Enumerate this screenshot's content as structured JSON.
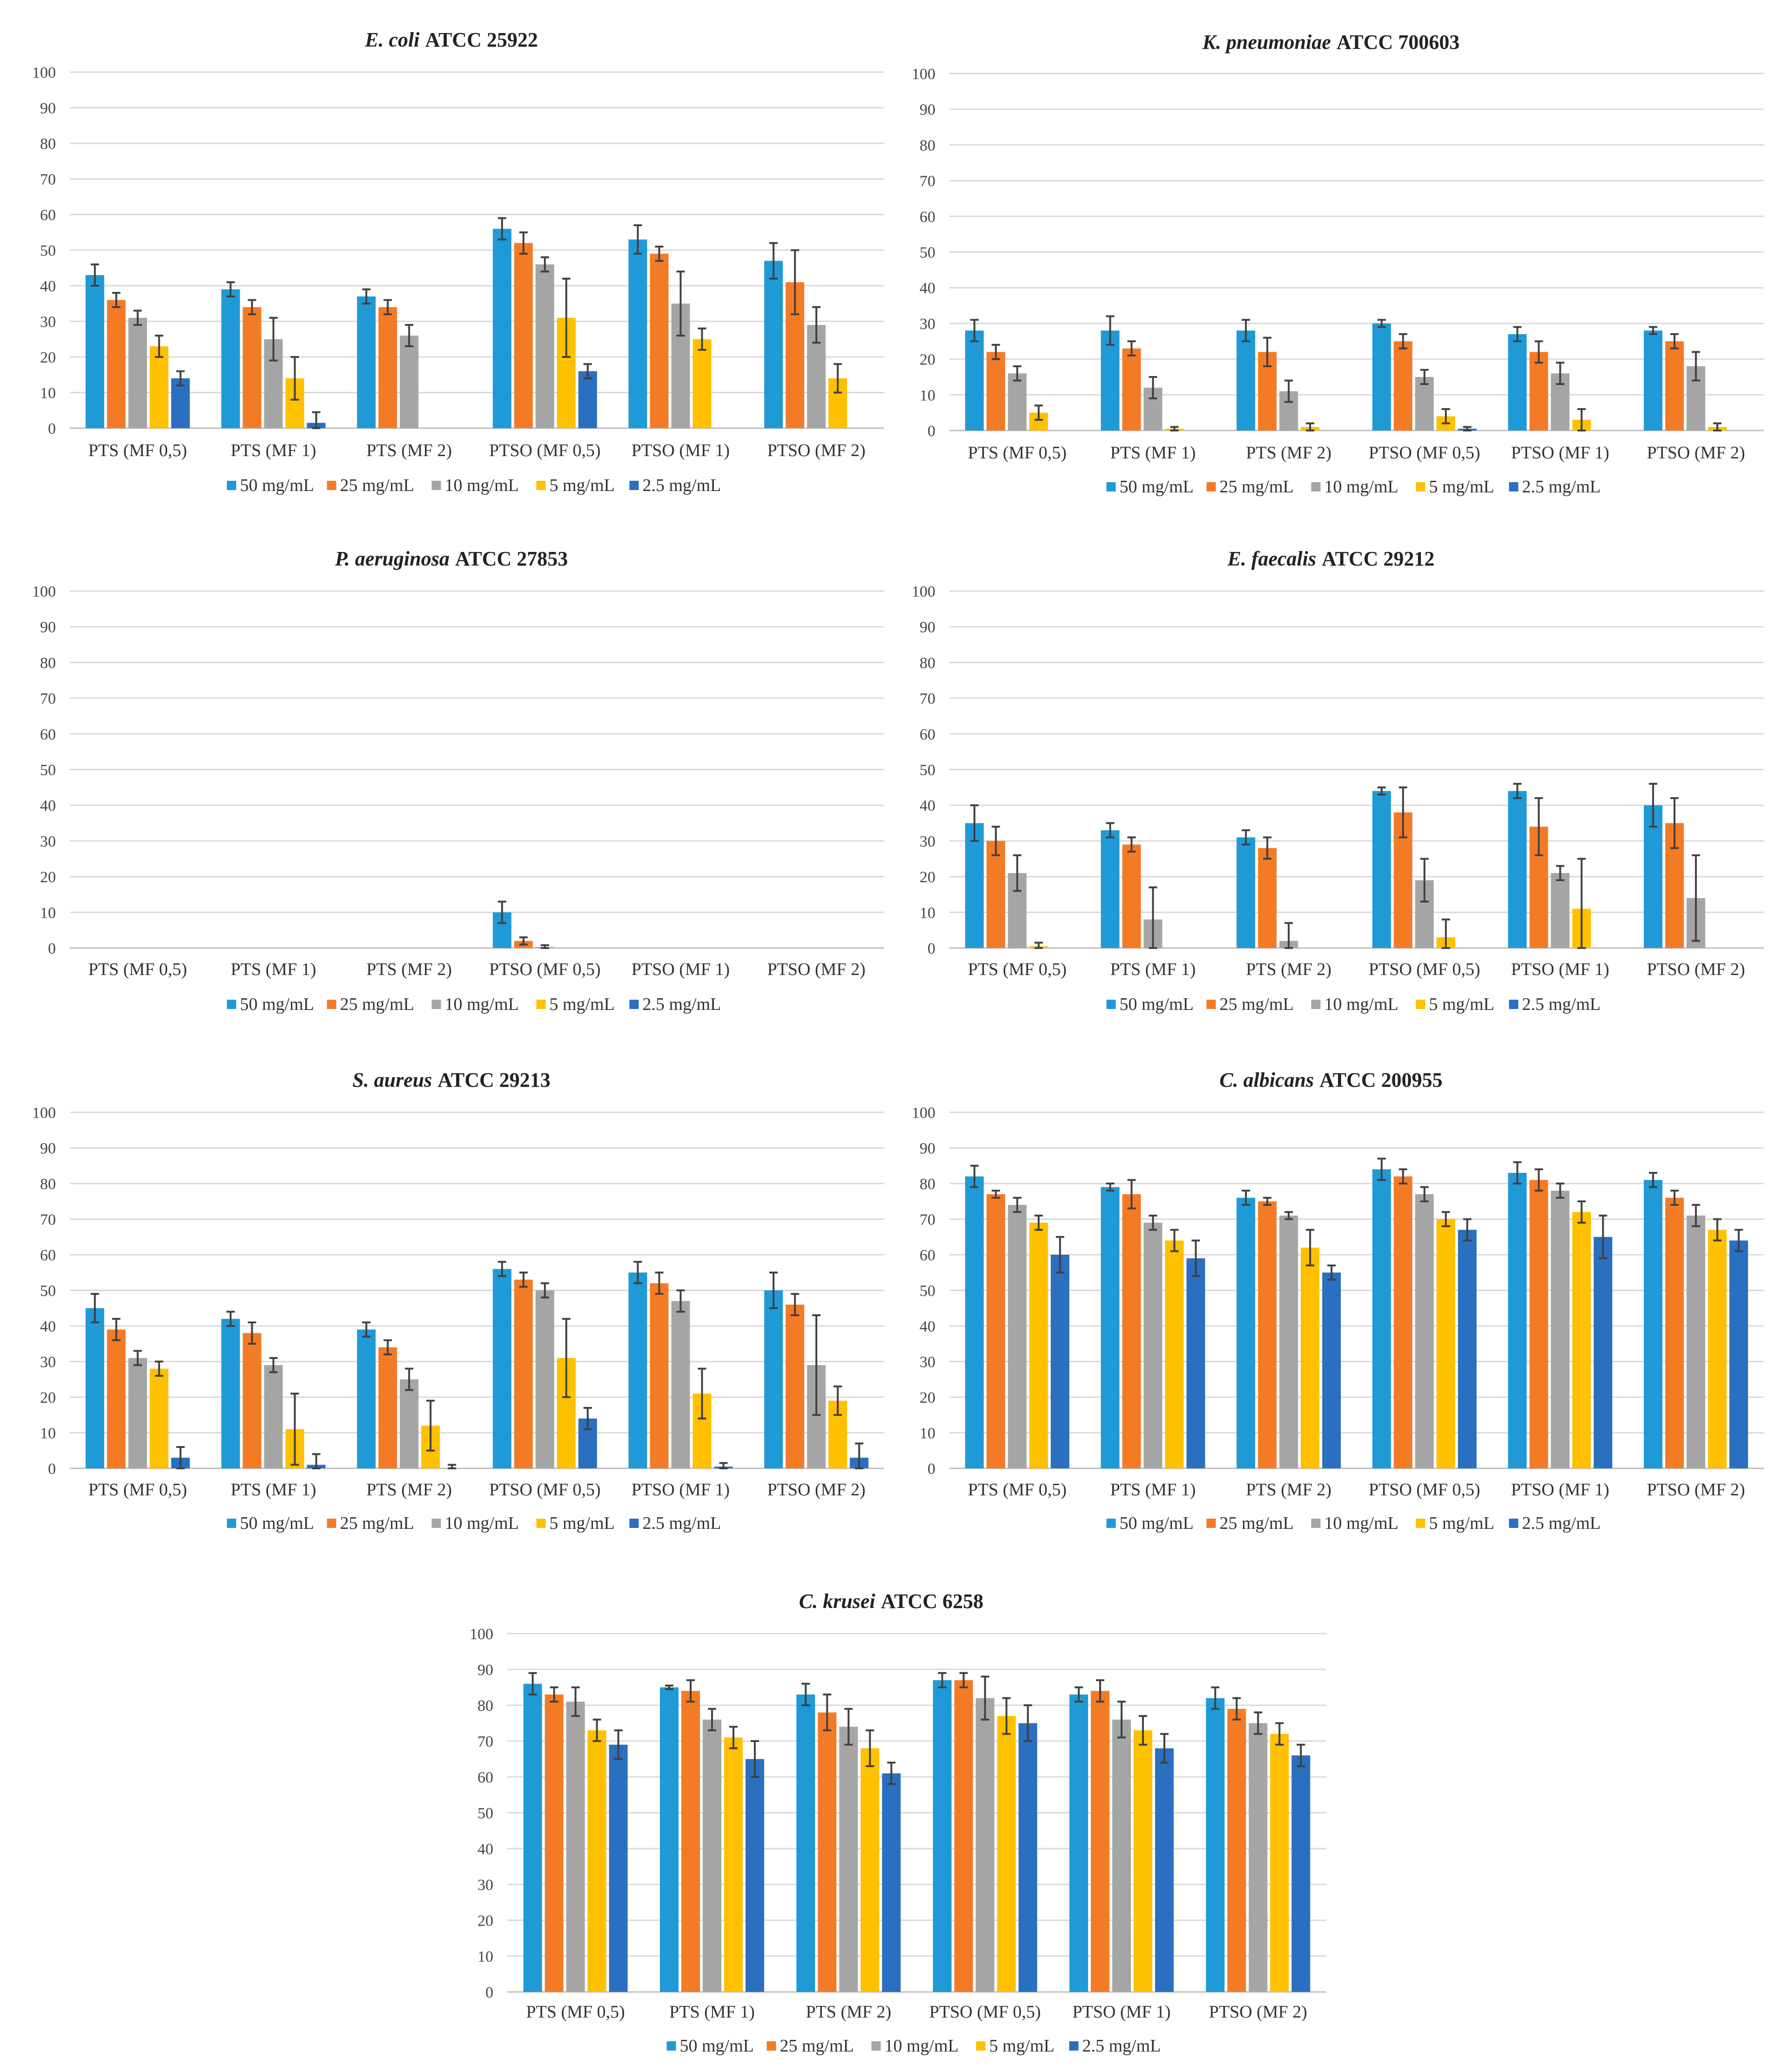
{
  "figure": "Antimicrobial activity panels",
  "colors": {
    "50 mg/mL": "#1f9ad6",
    "25 mg/mL": "#f47b26",
    "10 mg/mL": "#a5a5a5",
    "5 mg/mL": "#ffc000",
    "2.5 mg/mL": "#2a6fc0"
  },
  "chart_data": [
    {
      "type": "bar",
      "title_species": "E. coli",
      "title_strain": "ATCC 25922",
      "categories": [
        "PTS (MF 0,5)",
        "PTS (MF 1)",
        "PTS (MF 2)",
        "PTSO (MF 0,5)",
        "PTSO (MF 1)",
        "PTSO (MF 2)"
      ],
      "ylim": [
        0,
        100
      ],
      "yticks": [
        "0",
        "10",
        "20",
        "30",
        "40",
        "50",
        "60",
        "70",
        "80",
        "90",
        "100"
      ],
      "legend_position": "bottom",
      "series": [
        {
          "name": "50 mg/mL",
          "values": [
            43,
            39,
            37,
            56,
            53,
            47
          ],
          "errors": [
            3,
            2,
            2,
            3,
            4,
            5
          ]
        },
        {
          "name": "25 mg/mL",
          "values": [
            36,
            34,
            34,
            52,
            49,
            41
          ],
          "errors": [
            2,
            2,
            2,
            3,
            2,
            9
          ]
        },
        {
          "name": "10 mg/mL",
          "values": [
            31,
            25,
            26,
            46,
            35,
            29
          ],
          "errors": [
            2,
            6,
            3,
            2,
            9,
            5
          ]
        },
        {
          "name": "5 mg/mL",
          "values": [
            23,
            14,
            0,
            31,
            25,
            14
          ],
          "errors": [
            3,
            6,
            0,
            11,
            3,
            4
          ]
        },
        {
          "name": "2.5 mg/mL",
          "values": [
            14,
            1.5,
            0,
            16,
            0,
            0
          ],
          "errors": [
            2,
            3,
            0,
            2,
            0,
            0
          ]
        }
      ]
    },
    {
      "type": "bar",
      "title_species": "K. pneumoniae",
      "title_strain": "ATCC 700603",
      "categories": [
        "PTS (MF 0,5)",
        "PTS (MF 1)",
        "PTS (MF 2)",
        "PTSO (MF 0,5)",
        "PTSO (MF 1)",
        "PTSO (MF 2)"
      ],
      "ylim": [
        0,
        100
      ],
      "yticks": [
        "0",
        "10",
        "20",
        "30",
        "40",
        "50",
        "60",
        "70",
        "80",
        "90",
        "100"
      ],
      "legend_position": "bottom",
      "series": [
        {
          "name": "50 mg/mL",
          "values": [
            28,
            28,
            28,
            30,
            27,
            28
          ],
          "errors": [
            3,
            4,
            3,
            1,
            2,
            1
          ]
        },
        {
          "name": "25 mg/mL",
          "values": [
            22,
            23,
            22,
            25,
            22,
            25
          ],
          "errors": [
            2,
            2,
            4,
            2,
            3,
            2
          ]
        },
        {
          "name": "10 mg/mL",
          "values": [
            16,
            12,
            11,
            15,
            16,
            18
          ],
          "errors": [
            2,
            3,
            3,
            2,
            3,
            4
          ]
        },
        {
          "name": "5 mg/mL",
          "values": [
            5,
            0.5,
            1,
            4,
            3,
            1
          ],
          "errors": [
            2,
            0.5,
            1,
            2,
            3,
            1
          ]
        },
        {
          "name": "2.5 mg/mL",
          "values": [
            0,
            0,
            0,
            0.5,
            0,
            0
          ],
          "errors": [
            0,
            0,
            0,
            0.5,
            0,
            0
          ]
        }
      ]
    },
    {
      "type": "bar",
      "title_species": "P. aeruginosa",
      "title_strain": "ATCC 27853",
      "categories": [
        "PTS (MF 0,5)",
        "PTS (MF 1)",
        "PTS (MF 2)",
        "PTSO (MF 0,5)",
        "PTSO (MF 1)",
        "PTSO (MF 2)"
      ],
      "ylim": [
        0,
        100
      ],
      "yticks": [
        "0",
        "10",
        "20",
        "30",
        "40",
        "50",
        "60",
        "70",
        "80",
        "90",
        "100"
      ],
      "legend_position": "bottom",
      "series": [
        {
          "name": "50 mg/mL",
          "values": [
            0,
            0,
            0,
            10,
            0,
            0
          ],
          "errors": [
            0,
            0,
            0,
            3,
            0,
            0
          ]
        },
        {
          "name": "25 mg/mL",
          "values": [
            0,
            0,
            0,
            2,
            0,
            0
          ],
          "errors": [
            0,
            0,
            0,
            1,
            0,
            0
          ]
        },
        {
          "name": "10 mg/mL",
          "values": [
            0,
            0,
            0,
            0.3,
            0,
            0
          ],
          "errors": [
            0,
            0,
            0,
            0.5,
            0,
            0
          ]
        },
        {
          "name": "5 mg/mL",
          "values": [
            0,
            0,
            0,
            0,
            0,
            0
          ],
          "errors": [
            0,
            0,
            0,
            0,
            0,
            0
          ]
        },
        {
          "name": "2.5 mg/mL",
          "values": [
            0,
            0,
            0,
            0,
            0,
            0
          ],
          "errors": [
            0,
            0,
            0,
            0,
            0,
            0
          ]
        }
      ]
    },
    {
      "type": "bar",
      "title_species": "E. faecalis",
      "title_strain": "ATCC 29212",
      "categories": [
        "PTS (MF 0,5)",
        "PTS (MF 1)",
        "PTS (MF 2)",
        "PTSO (MF 0,5)",
        "PTSO (MF 1)",
        "PTSO (MF 2)"
      ],
      "ylim": [
        0,
        100
      ],
      "yticks": [
        "0",
        "10",
        "20",
        "30",
        "40",
        "50",
        "60",
        "70",
        "80",
        "90",
        "100"
      ],
      "legend_position": "bottom",
      "series": [
        {
          "name": "50 mg/mL",
          "values": [
            35,
            33,
            31,
            44,
            44,
            40
          ],
          "errors": [
            5,
            2,
            2,
            1,
            2,
            6
          ]
        },
        {
          "name": "25 mg/mL",
          "values": [
            30,
            29,
            28,
            38,
            34,
            35
          ],
          "errors": [
            4,
            2,
            3,
            7,
            8,
            7
          ]
        },
        {
          "name": "10 mg/mL",
          "values": [
            21,
            8,
            2,
            19,
            21,
            14
          ],
          "errors": [
            5,
            9,
            5,
            6,
            2,
            12
          ]
        },
        {
          "name": "5 mg/mL",
          "values": [
            0.5,
            0,
            0,
            3,
            11,
            0
          ],
          "errors": [
            1,
            0,
            0,
            5,
            14,
            0
          ]
        },
        {
          "name": "2.5 mg/mL",
          "values": [
            0,
            0,
            0,
            0,
            0,
            0
          ],
          "errors": [
            0,
            0,
            0,
            0,
            0,
            0
          ]
        }
      ]
    },
    {
      "type": "bar",
      "title_species": "S. aureus",
      "title_strain": "ATCC 29213",
      "categories": [
        "PTS (MF 0,5)",
        "PTS (MF 1)",
        "PTS (MF 2)",
        "PTSO (MF 0,5)",
        "PTSO (MF 1)",
        "PTSO (MF 2)"
      ],
      "ylim": [
        0,
        100
      ],
      "yticks": [
        "0",
        "10",
        "20",
        "30",
        "40",
        "50",
        "60",
        "70",
        "80",
        "90",
        "100"
      ],
      "legend_position": "bottom",
      "series": [
        {
          "name": "50 mg/mL",
          "values": [
            45,
            42,
            39,
            56,
            55,
            50
          ],
          "errors": [
            4,
            2,
            2,
            2,
            3,
            5
          ]
        },
        {
          "name": "25 mg/mL",
          "values": [
            39,
            38,
            34,
            53,
            52,
            46
          ],
          "errors": [
            3,
            3,
            2,
            2,
            3,
            3
          ]
        },
        {
          "name": "10 mg/mL",
          "values": [
            31,
            29,
            25,
            50,
            47,
            29
          ],
          "errors": [
            2,
            2,
            3,
            2,
            3,
            14
          ]
        },
        {
          "name": "5 mg/mL",
          "values": [
            28,
            11,
            12,
            31,
            21,
            19
          ],
          "errors": [
            2,
            10,
            7,
            11,
            7,
            4
          ]
        },
        {
          "name": "2.5 mg/mL",
          "values": [
            3,
            1,
            0,
            14,
            0.5,
            3
          ],
          "errors": [
            3,
            3,
            1,
            3,
            1,
            4
          ]
        }
      ]
    },
    {
      "type": "bar",
      "title_species": "C. albicans",
      "title_strain": "ATCC 200955",
      "categories": [
        "PTS (MF 0,5)",
        "PTS (MF 1)",
        "PTS (MF 2)",
        "PTSO (MF 0,5)",
        "PTSO (MF 1)",
        "PTSO (MF 2)"
      ],
      "ylim": [
        0,
        100
      ],
      "yticks": [
        "0",
        "10",
        "20",
        "30",
        "40",
        "50",
        "60",
        "70",
        "80",
        "90",
        "100"
      ],
      "legend_position": "bottom",
      "series": [
        {
          "name": "50 mg/mL",
          "values": [
            82,
            79,
            76,
            84,
            83,
            81
          ],
          "errors": [
            3,
            1,
            2,
            3,
            3,
            2
          ]
        },
        {
          "name": "25 mg/mL",
          "values": [
            77,
            77,
            75,
            82,
            81,
            76
          ],
          "errors": [
            1,
            4,
            1,
            2,
            3,
            2
          ]
        },
        {
          "name": "10 mg/mL",
          "values": [
            74,
            69,
            71,
            77,
            78,
            71
          ],
          "errors": [
            2,
            2,
            1,
            2,
            2,
            3
          ]
        },
        {
          "name": "5 mg/mL",
          "values": [
            69,
            64,
            62,
            70,
            72,
            67
          ],
          "errors": [
            2,
            3,
            5,
            2,
            3,
            3
          ]
        },
        {
          "name": "2.5 mg/mL",
          "values": [
            60,
            59,
            55,
            67,
            65,
            64
          ],
          "errors": [
            5,
            5,
            2,
            3,
            6,
            3
          ]
        }
      ]
    },
    {
      "type": "bar",
      "title_species": "C. krusei",
      "title_strain": "ATCC 6258",
      "categories": [
        "PTS (MF 0,5)",
        "PTS (MF 1)",
        "PTS (MF 2)",
        "PTSO (MF 0,5)",
        "PTSO (MF 1)",
        "PTSO (MF 2)"
      ],
      "ylim": [
        0,
        100
      ],
      "yticks": [
        "0",
        "10",
        "20",
        "30",
        "40",
        "50",
        "60",
        "70",
        "80",
        "90",
        "100"
      ],
      "legend_position": "bottom",
      "series": [
        {
          "name": "50 mg/mL",
          "values": [
            86,
            85,
            83,
            87,
            83,
            82
          ],
          "errors": [
            3,
            0.5,
            3,
            2,
            2,
            3
          ]
        },
        {
          "name": "25 mg/mL",
          "values": [
            83,
            84,
            78,
            87,
            84,
            79
          ],
          "errors": [
            2,
            3,
            5,
            2,
            3,
            3
          ]
        },
        {
          "name": "10 mg/mL",
          "values": [
            81,
            76,
            74,
            82,
            76,
            75
          ],
          "errors": [
            4,
            3,
            5,
            6,
            5,
            3
          ]
        },
        {
          "name": "5 mg/mL",
          "values": [
            73,
            71,
            68,
            77,
            73,
            72
          ],
          "errors": [
            3,
            3,
            5,
            5,
            4,
            3
          ]
        },
        {
          "name": "2.5 mg/mL",
          "values": [
            69,
            65,
            61,
            75,
            68,
            66
          ],
          "errors": [
            4,
            5,
            3,
            5,
            4,
            3
          ]
        }
      ]
    }
  ]
}
